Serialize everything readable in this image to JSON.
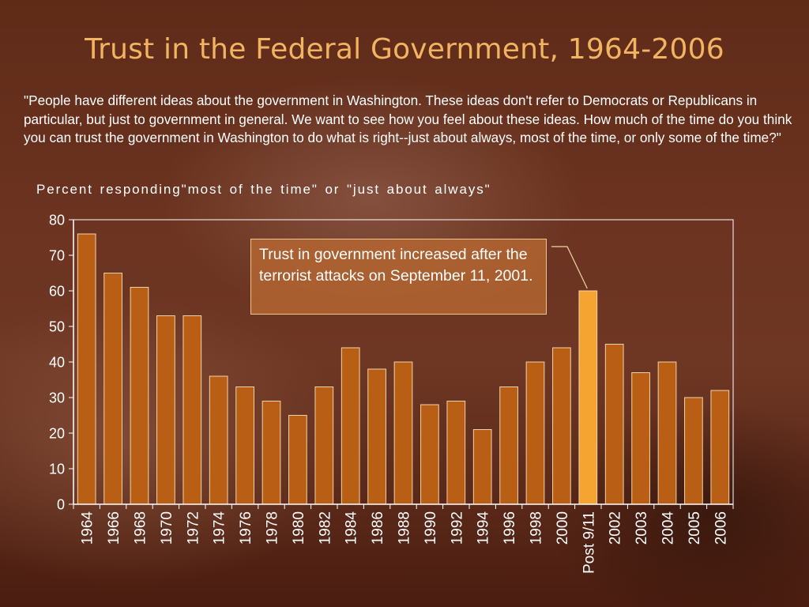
{
  "slide": {
    "title": "Trust in the Federal Government, 1964-2006",
    "question": "\"People have different ideas about the government in Washington.  These ideas don't refer to Democrats or Republicans in particular, but just to government in general.  We want to see how you feel about these ideas.  How much of the time do you think you can trust the government in Washington to do what is right--just about always, most of the time, or only some of the time?\"",
    "annotation": "Trust in government  increased after the terrorist attacks on September 11, 2001."
  },
  "colors": {
    "bar": "#b85f15",
    "highlight_bar": "#f6a431",
    "bar_border": "#f2d3a8",
    "axis": "#ffffff"
  },
  "chart_data": {
    "type": "bar",
    "title": "Trust in the Federal Government, 1964-2006",
    "ylabel": "Percent responding\"most of the time\" or \"just about always\"",
    "xlabel": "",
    "ylim": [
      0,
      80
    ],
    "yticks": [
      0,
      10,
      20,
      30,
      40,
      50,
      60,
      70,
      80
    ],
    "grid": false,
    "categories": [
      "1964",
      "1966",
      "1968",
      "1970",
      "1972",
      "1974",
      "1976",
      "1978",
      "1980",
      "1982",
      "1984",
      "1986",
      "1988",
      "1990",
      "1992",
      "1994",
      "1996",
      "1998",
      "2000",
      "Post 9/11",
      "2002",
      "2003",
      "2004",
      "2005",
      "2006"
    ],
    "values": [
      76,
      65,
      61,
      53,
      53,
      36,
      33,
      29,
      25,
      33,
      44,
      38,
      40,
      28,
      29,
      21,
      33,
      40,
      44,
      60,
      45,
      37,
      40,
      30,
      32
    ],
    "highlight": "Post 9/11"
  }
}
